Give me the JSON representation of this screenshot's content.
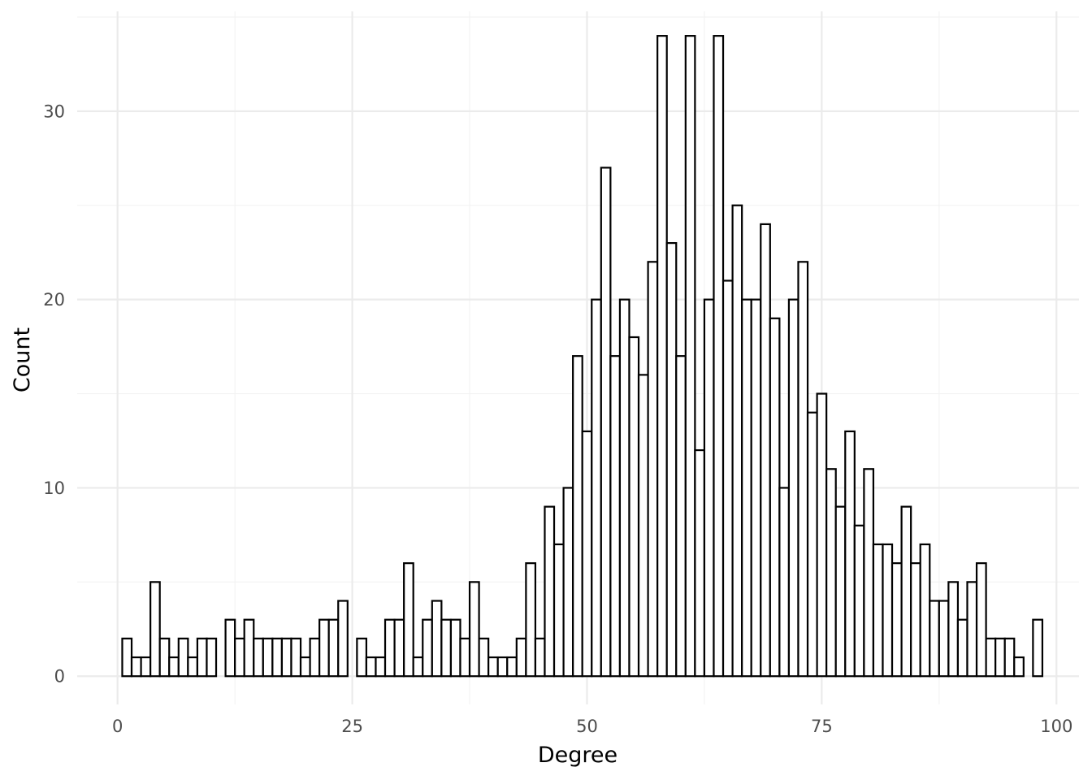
{
  "chart_data": {
    "type": "bar",
    "xlabel": "Degree",
    "ylabel": "Count",
    "xlim": [
      -4.3,
      102.4
    ],
    "ylim": [
      -1.5,
      35.3
    ],
    "xticks": [
      0,
      25,
      50,
      75,
      100
    ],
    "yticks": [
      0,
      10,
      20,
      30
    ],
    "bin_width": 1,
    "grid": true,
    "bar_fill": "#ffffff",
    "bar_outline": "#000000",
    "bins": [
      {
        "x": 1,
        "count": 2
      },
      {
        "x": 2,
        "count": 1
      },
      {
        "x": 3,
        "count": 1
      },
      {
        "x": 4,
        "count": 5
      },
      {
        "x": 5,
        "count": 2
      },
      {
        "x": 6,
        "count": 1
      },
      {
        "x": 7,
        "count": 2
      },
      {
        "x": 8,
        "count": 1
      },
      {
        "x": 9,
        "count": 2
      },
      {
        "x": 10,
        "count": 2
      },
      {
        "x": 12,
        "count": 3
      },
      {
        "x": 13,
        "count": 2
      },
      {
        "x": 14,
        "count": 3
      },
      {
        "x": 15,
        "count": 2
      },
      {
        "x": 16,
        "count": 2
      },
      {
        "x": 17,
        "count": 2
      },
      {
        "x": 18,
        "count": 2
      },
      {
        "x": 19,
        "count": 2
      },
      {
        "x": 20,
        "count": 1
      },
      {
        "x": 21,
        "count": 2
      },
      {
        "x": 22,
        "count": 3
      },
      {
        "x": 23,
        "count": 3
      },
      {
        "x": 24,
        "count": 4
      },
      {
        "x": 26,
        "count": 2
      },
      {
        "x": 27,
        "count": 1
      },
      {
        "x": 28,
        "count": 1
      },
      {
        "x": 29,
        "count": 3
      },
      {
        "x": 30,
        "count": 3
      },
      {
        "x": 31,
        "count": 6
      },
      {
        "x": 32,
        "count": 1
      },
      {
        "x": 33,
        "count": 3
      },
      {
        "x": 34,
        "count": 4
      },
      {
        "x": 35,
        "count": 3
      },
      {
        "x": 36,
        "count": 3
      },
      {
        "x": 37,
        "count": 2
      },
      {
        "x": 38,
        "count": 5
      },
      {
        "x": 39,
        "count": 2
      },
      {
        "x": 40,
        "count": 1
      },
      {
        "x": 41,
        "count": 1
      },
      {
        "x": 42,
        "count": 1
      },
      {
        "x": 43,
        "count": 2
      },
      {
        "x": 44,
        "count": 6
      },
      {
        "x": 45,
        "count": 2
      },
      {
        "x": 46,
        "count": 9
      },
      {
        "x": 47,
        "count": 7
      },
      {
        "x": 48,
        "count": 10
      },
      {
        "x": 49,
        "count": 17
      },
      {
        "x": 50,
        "count": 13
      },
      {
        "x": 51,
        "count": 20
      },
      {
        "x": 52,
        "count": 27
      },
      {
        "x": 53,
        "count": 17
      },
      {
        "x": 54,
        "count": 20
      },
      {
        "x": 55,
        "count": 18
      },
      {
        "x": 56,
        "count": 16
      },
      {
        "x": 57,
        "count": 22
      },
      {
        "x": 58,
        "count": 34
      },
      {
        "x": 59,
        "count": 23
      },
      {
        "x": 60,
        "count": 17
      },
      {
        "x": 61,
        "count": 34
      },
      {
        "x": 62,
        "count": 12
      },
      {
        "x": 63,
        "count": 20
      },
      {
        "x": 64,
        "count": 34
      },
      {
        "x": 65,
        "count": 21
      },
      {
        "x": 66,
        "count": 25
      },
      {
        "x": 67,
        "count": 20
      },
      {
        "x": 68,
        "count": 20
      },
      {
        "x": 69,
        "count": 24
      },
      {
        "x": 70,
        "count": 19
      },
      {
        "x": 71,
        "count": 10
      },
      {
        "x": 72,
        "count": 20
      },
      {
        "x": 73,
        "count": 22
      },
      {
        "x": 74,
        "count": 14
      },
      {
        "x": 75,
        "count": 15
      },
      {
        "x": 76,
        "count": 11
      },
      {
        "x": 77,
        "count": 9
      },
      {
        "x": 78,
        "count": 13
      },
      {
        "x": 79,
        "count": 8
      },
      {
        "x": 80,
        "count": 11
      },
      {
        "x": 81,
        "count": 7
      },
      {
        "x": 82,
        "count": 7
      },
      {
        "x": 83,
        "count": 6
      },
      {
        "x": 84,
        "count": 9
      },
      {
        "x": 85,
        "count": 6
      },
      {
        "x": 86,
        "count": 7
      },
      {
        "x": 87,
        "count": 4
      },
      {
        "x": 88,
        "count": 4
      },
      {
        "x": 89,
        "count": 5
      },
      {
        "x": 90,
        "count": 3
      },
      {
        "x": 91,
        "count": 5
      },
      {
        "x": 92,
        "count": 6
      },
      {
        "x": 93,
        "count": 2
      },
      {
        "x": 94,
        "count": 2
      },
      {
        "x": 95,
        "count": 2
      },
      {
        "x": 96,
        "count": 1
      },
      {
        "x": 98,
        "count": 3
      }
    ]
  }
}
